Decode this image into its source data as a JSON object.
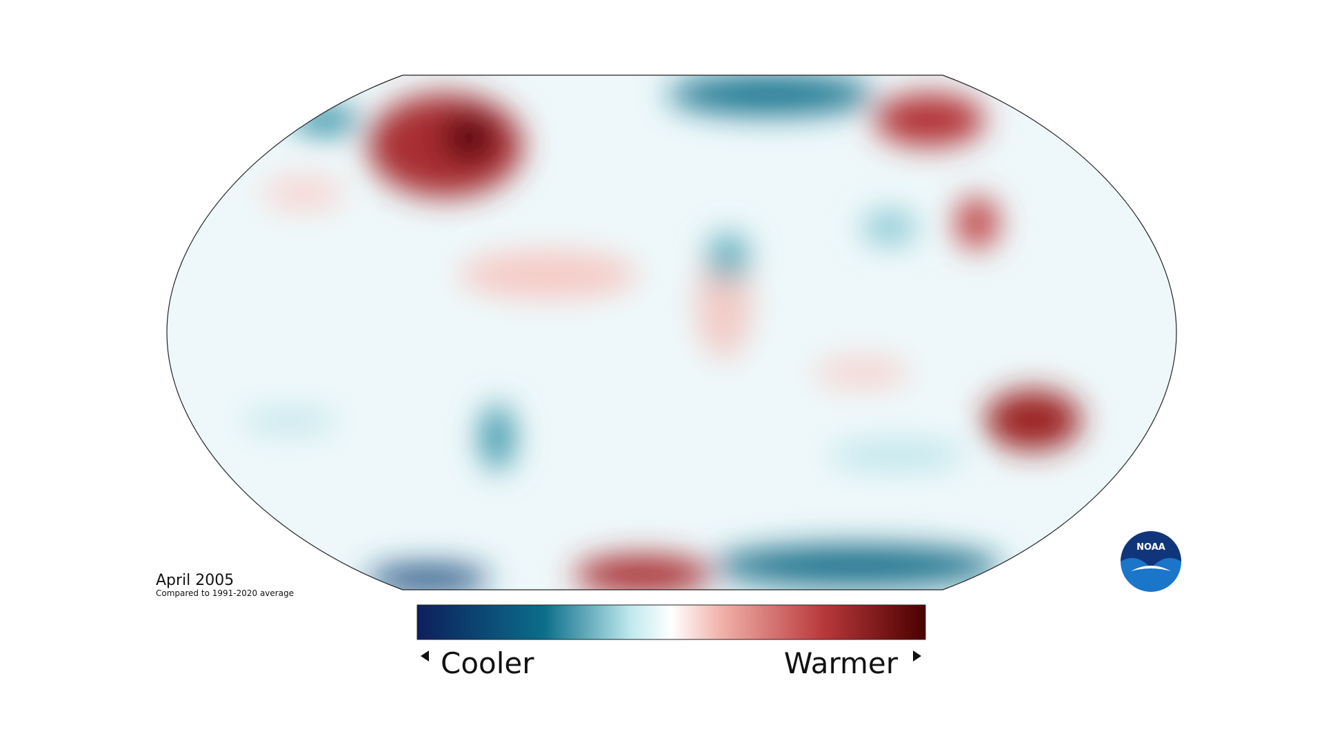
{
  "map": {
    "title": "April 2005",
    "subtitle": "Compared to 1991-2020 average"
  },
  "legend": {
    "low_label": "Cooler",
    "high_label": "Warmer"
  },
  "logo": {
    "text": "NOAA"
  }
}
